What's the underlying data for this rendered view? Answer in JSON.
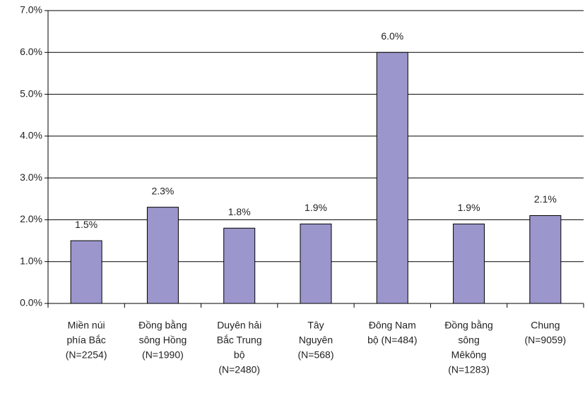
{
  "chart_data": {
    "type": "bar",
    "categories": [
      [
        "Miền núi",
        "phía Bắc",
        "(N=2254)"
      ],
      [
        "Đồng bằng",
        "sông Hồng",
        "(N=1990)"
      ],
      [
        "Duyên hải",
        "Bắc Trung",
        "bộ",
        "(N=2480)"
      ],
      [
        "Tây",
        "Nguyên",
        "(N=568)"
      ],
      [
        "Đông Nam",
        "bộ (N=484)"
      ],
      [
        "Đồng bằng",
        "sông",
        "Mêkông",
        "(N=1283)"
      ],
      [
        "Chung",
        "(N=9059)"
      ]
    ],
    "values": [
      1.5,
      2.3,
      1.8,
      1.9,
      6.0,
      1.9,
      2.1
    ],
    "value_labels": [
      "1.5%",
      "2.3%",
      "1.8%",
      "1.9%",
      "6.0%",
      "1.9%",
      "2.1%"
    ],
    "color": "#9b96cc",
    "ylim": [
      0,
      7
    ],
    "yticks": [
      {
        "value": 0,
        "label": "0.0%"
      },
      {
        "value": 1,
        "label": "1.0%"
      },
      {
        "value": 2,
        "label": "2.0%"
      },
      {
        "value": 3,
        "label": "3.0%"
      },
      {
        "value": 4,
        "label": "4.0%"
      },
      {
        "value": 5,
        "label": "5.0%"
      },
      {
        "value": 6,
        "label": "6.0%"
      },
      {
        "value": 7,
        "label": "7.0%"
      }
    ],
    "grid": true
  }
}
